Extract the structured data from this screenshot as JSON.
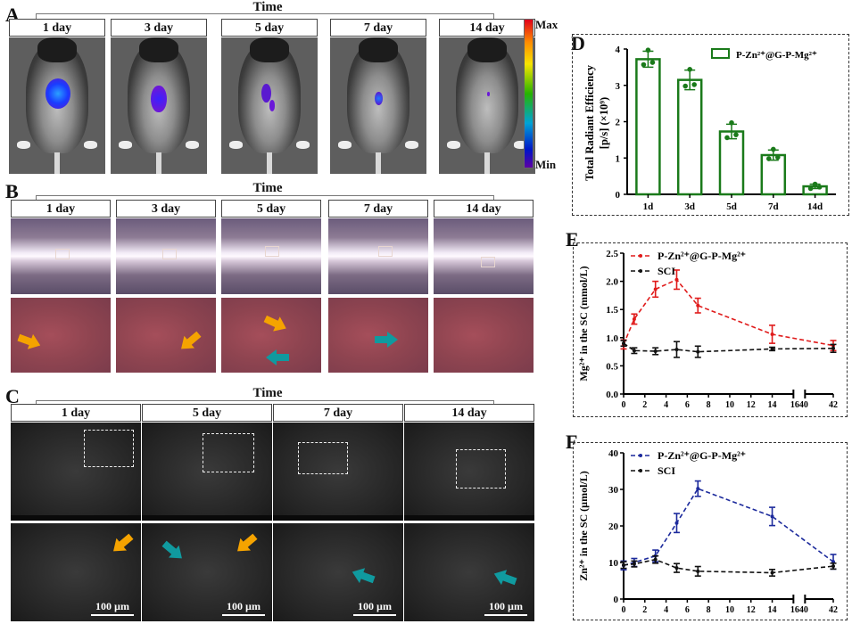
{
  "panels": {
    "A": {
      "letter": "A",
      "time_title": "Time",
      "days": [
        "1 day",
        "3 day",
        "5 day",
        "7 day",
        "14 day"
      ],
      "colorbar": {
        "max_label": "Max",
        "min_label": "Min"
      }
    },
    "B": {
      "letter": "B",
      "time_title": "Time",
      "days": [
        "1 day",
        "3 day",
        "5 day",
        "7 day",
        "14 day"
      ]
    },
    "C": {
      "letter": "C",
      "time_title": "Time",
      "days": [
        "1 day",
        "5 day",
        "7 day",
        "14 day"
      ],
      "scale_bar": "100 µm"
    },
    "D": {
      "letter": "D"
    },
    "E": {
      "letter": "E"
    },
    "F": {
      "letter": "F"
    }
  },
  "colors": {
    "green": "#1a7a1a",
    "red": "#e01b1b",
    "blue": "#1c2a9c",
    "black": "#111111",
    "orange_arrow": "#f5a300",
    "teal_arrow": "#109a9f"
  },
  "chart_data": [
    {
      "id": "D",
      "type": "bar",
      "title": "",
      "ylabel_line1": "Total Radiant Efficiency",
      "ylabel_line2": "[p/s] (×10⁹)",
      "xlabel": "",
      "categories": [
        "1d",
        "3d",
        "5d",
        "7d",
        "14d"
      ],
      "values": [
        3.72,
        3.15,
        1.73,
        1.08,
        0.22
      ],
      "errors": [
        0.22,
        0.27,
        0.2,
        0.14,
        0.06
      ],
      "points": [
        [
          3.97,
          3.57,
          3.63
        ],
        [
          3.44,
          2.98,
          3.02
        ],
        [
          1.97,
          1.56,
          1.64
        ],
        [
          1.24,
          0.98,
          1.02
        ],
        [
          0.28,
          0.16,
          0.2
        ]
      ],
      "ylim": [
        0,
        4
      ],
      "yticks": [
        "0",
        "1",
        "2",
        "3",
        "4"
      ],
      "legend": {
        "label": "P-Zn²⁺@G-P-Mg²⁺",
        "position": "top-right"
      },
      "grid": false
    },
    {
      "id": "E",
      "type": "line",
      "ylabel": "Mg²⁺ in the SC (mmol/L)",
      "xlabel": "",
      "x": [
        0,
        1,
        3,
        5,
        7,
        14,
        42
      ],
      "xticks": [
        "0",
        "2",
        "4",
        "6",
        "8",
        "10",
        "12",
        "14",
        "1640",
        "42"
      ],
      "ylim": [
        0,
        2.5
      ],
      "yticks": [
        "0.0",
        "0.5",
        "1.0",
        "1.5",
        "2.0",
        "2.5"
      ],
      "axis_break": [
        16,
        40
      ],
      "series": [
        {
          "name": "P-Zn²⁺@G-P-Mg²⁺",
          "color": "#e01b1b",
          "values": [
            0.88,
            1.33,
            1.86,
            2.03,
            1.57,
            1.06,
            0.86
          ],
          "errors": [
            0.08,
            0.09,
            0.14,
            0.17,
            0.13,
            0.16,
            0.09
          ]
        },
        {
          "name": "SCI",
          "color": "#111111",
          "values": [
            0.9,
            0.77,
            0.76,
            0.79,
            0.75,
            0.8,
            0.81
          ],
          "errors": [
            0.05,
            0.05,
            0.06,
            0.14,
            0.1,
            0.03,
            0.07
          ]
        }
      ],
      "legend_position": "top-left",
      "grid": false
    },
    {
      "id": "F",
      "type": "line",
      "ylabel": "Zn²⁺ in the SC (µmol/L)",
      "xlabel": "",
      "x": [
        0,
        1,
        3,
        5,
        7,
        14,
        42
      ],
      "xticks": [
        "0",
        "2",
        "4",
        "6",
        "8",
        "10",
        "12",
        "14",
        "1640",
        "42"
      ],
      "ylim": [
        0,
        40
      ],
      "yticks": [
        "0",
        "10",
        "20",
        "30",
        "40"
      ],
      "axis_break": [
        16,
        40
      ],
      "series": [
        {
          "name": "P-Zn²⁺@G-P-Mg²⁺",
          "color": "#1c2a9c",
          "values": [
            9.2,
            10.0,
            11.8,
            20.8,
            30.2,
            22.6,
            10.2
          ],
          "errors": [
            1.2,
            1.1,
            1.6,
            2.6,
            2.1,
            2.5,
            2.0
          ]
        },
        {
          "name": "SCI",
          "color": "#111111",
          "values": [
            9.3,
            9.6,
            10.8,
            8.5,
            7.6,
            7.2,
            9.0
          ],
          "errors": [
            0.9,
            0.8,
            1.0,
            1.2,
            1.3,
            0.9,
            0.8
          ]
        }
      ],
      "legend_position": "top-left",
      "grid": false
    }
  ]
}
